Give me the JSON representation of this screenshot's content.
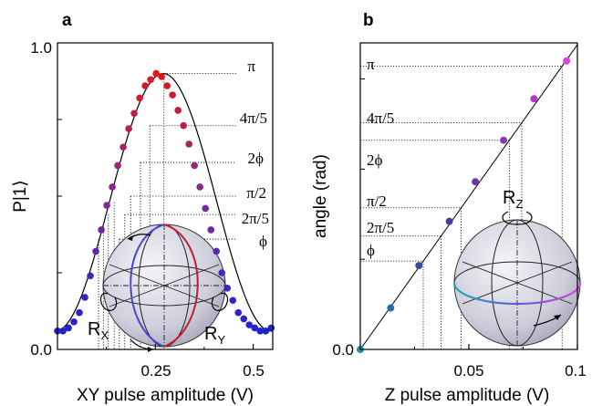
{
  "chart_data": [
    {
      "panel_label": "a",
      "type": "scatter",
      "xlabel": "XY pulse amplitude (V)",
      "ylabel": "P|1⟩",
      "xlim": [
        0.0,
        0.55
      ],
      "ylim": [
        0.0,
        1.0
      ],
      "xticks": [
        0.25,
        0.5
      ],
      "xtick_labels": [
        "0.25",
        "0.5"
      ],
      "yticks": [
        0.0,
        1.0
      ],
      "ytick_labels": [
        "0.0",
        "1.0"
      ],
      "series": [
        {
          "x": [
            0.0,
            0.014,
            0.028,
            0.042,
            0.056,
            0.07,
            0.084,
            0.098,
            0.112,
            0.126,
            0.14,
            0.154,
            0.168,
            0.182,
            0.196,
            0.21,
            0.224,
            0.238,
            0.252,
            0.266,
            0.28,
            0.294,
            0.308,
            0.322,
            0.336,
            0.35,
            0.364,
            0.378,
            0.392,
            0.406,
            0.42,
            0.434,
            0.448,
            0.462,
            0.476,
            0.49,
            0.504,
            0.518,
            0.532,
            0.546
          ],
          "y": [
            0.06,
            0.06,
            0.07,
            0.09,
            0.12,
            0.17,
            0.24,
            0.32,
            0.39,
            0.47,
            0.53,
            0.6,
            0.66,
            0.72,
            0.77,
            0.82,
            0.86,
            0.88,
            0.9,
            0.89,
            0.86,
            0.83,
            0.78,
            0.73,
            0.67,
            0.6,
            0.53,
            0.46,
            0.39,
            0.32,
            0.25,
            0.2,
            0.16,
            0.12,
            0.1,
            0.08,
            0.07,
            0.06,
            0.06,
            0.07
          ],
          "color": "gradient blue→purple→red by angle"
        }
      ],
      "fit_curve": "cosine",
      "annotations": [
        "π",
        "4π/5",
        "2ϕ",
        "π/2",
        "2π/5",
        "ϕ"
      ],
      "annotation_levels": [
        0.9,
        0.73,
        0.61,
        0.5,
        0.44,
        0.36
      ],
      "annotation_x": [
        0.272,
        0.236,
        0.212,
        0.187,
        0.172,
        0.158
      ],
      "inset": {
        "labels": [
          "R",
          "X",
          "R",
          "Y"
        ]
      }
    },
    {
      "panel_label": "b",
      "type": "scatter",
      "xlabel": "Z pulse amplitude (V)",
      "ylabel": "angle (rad)",
      "xlim": [
        0.0,
        0.1
      ],
      "ylim": [
        0.0,
        3.4
      ],
      "xticks": [
        0.05,
        0.1
      ],
      "xtick_labels": [
        "0.05",
        "0.1"
      ],
      "yticks": [
        0.0
      ],
      "ytick_labels": [
        "0.0"
      ],
      "series": [
        {
          "x": [
            0.0,
            0.014,
            0.027,
            0.041,
            0.053,
            0.066,
            0.08,
            0.095
          ],
          "y": [
            0.0,
            0.46,
            0.93,
            1.42,
            1.86,
            2.32,
            2.78,
            3.2
          ],
          "colors": [
            "#1a9aa8",
            "#2c6aa0",
            "#3a4a9a",
            "#4a3a9a",
            "#6a3aa0",
            "#8a3aa8",
            "#b03ac0",
            "#d840e0"
          ]
        }
      ],
      "fit_line": {
        "slope": 33.8,
        "intercept": 0.0
      },
      "annotations": [
        "π",
        "4π/5",
        "2ϕ",
        "π/2",
        "2π/5",
        "ϕ"
      ],
      "annotation_levels": [
        3.14159,
        2.513,
        2.32,
        1.571,
        1.257,
        0.98
      ],
      "inset": {
        "labels": [
          "R",
          "Z"
        ]
      }
    }
  ],
  "colors": {
    "blue": "#2222cc",
    "purple": "#7a2aa0",
    "red": "#e01818",
    "sphere": "#c9c9d6"
  }
}
